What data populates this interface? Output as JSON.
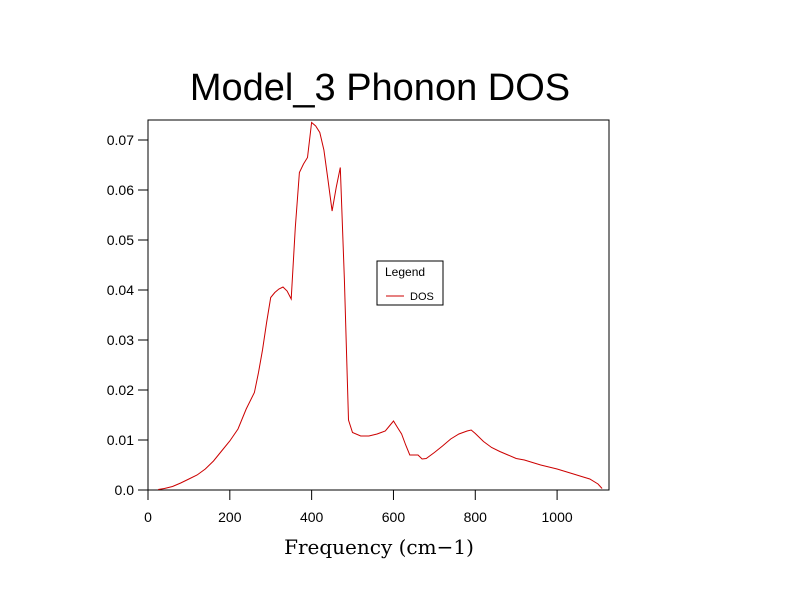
{
  "chart_data": {
    "type": "line",
    "title": "Model_3 Phonon DOS",
    "xlabel": "Frequency (cm−1)",
    "ylabel": "",
    "xlim": [
      0,
      1130
    ],
    "ylim": [
      0,
      0.074
    ],
    "x_ticks": [
      0,
      200,
      400,
      600,
      800,
      1000
    ],
    "x_tick_labels": [
      "0",
      "200",
      "400",
      "600",
      "800",
      "1000"
    ],
    "y_ticks": [
      0,
      0.01,
      0.02,
      0.03,
      0.04,
      0.05,
      0.06,
      0.07
    ],
    "y_tick_labels": [
      "0.0",
      "0.01",
      "0.02",
      "0.03",
      "0.04",
      "0.05",
      "0.06",
      "0.07"
    ],
    "grid": false,
    "legend": {
      "title": "Legend",
      "placement": "center-right"
    },
    "series": [
      {
        "name": "DOS",
        "color": "#cc0000",
        "x": [
          25,
          40,
          60,
          80,
          100,
          120,
          140,
          160,
          180,
          200,
          220,
          240,
          260,
          270,
          280,
          290,
          300,
          310,
          320,
          330,
          340,
          350,
          360,
          370,
          380,
          390,
          400,
          410,
          420,
          430,
          440,
          450,
          460,
          470,
          480,
          490,
          500,
          520,
          540,
          560,
          580,
          590,
          600,
          610,
          620,
          630,
          640,
          660,
          670,
          680,
          700,
          720,
          740,
          760,
          780,
          790,
          800,
          820,
          840,
          860,
          880,
          900,
          920,
          940,
          960,
          980,
          1000,
          1020,
          1040,
          1060,
          1080,
          1100,
          1110
        ],
        "y": [
          0.0001,
          0.0003,
          0.0007,
          0.0014,
          0.0022,
          0.003,
          0.0042,
          0.0058,
          0.0078,
          0.0098,
          0.0122,
          0.0162,
          0.0195,
          0.0235,
          0.028,
          0.0335,
          0.0385,
          0.0395,
          0.0402,
          0.0406,
          0.0398,
          0.0382,
          0.0525,
          0.0635,
          0.0652,
          0.0665,
          0.0735,
          0.0728,
          0.0715,
          0.068,
          0.062,
          0.0558,
          0.0605,
          0.0645,
          0.042,
          0.014,
          0.0115,
          0.0108,
          0.0108,
          0.0112,
          0.0118,
          0.0128,
          0.0138,
          0.0125,
          0.0112,
          0.009,
          0.007,
          0.007,
          0.0062,
          0.0063,
          0.0075,
          0.0088,
          0.0102,
          0.0112,
          0.0118,
          0.012,
          0.0113,
          0.0097,
          0.0085,
          0.0077,
          0.007,
          0.0063,
          0.006,
          0.0055,
          0.005,
          0.0046,
          0.0042,
          0.0037,
          0.0032,
          0.0027,
          0.0022,
          0.0012,
          0.0003
        ]
      }
    ]
  }
}
